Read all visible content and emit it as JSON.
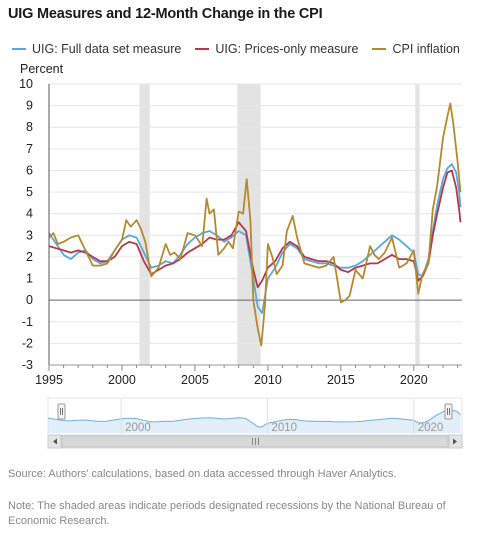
{
  "header": {
    "title": "UIG Measures and 12-Month Change in the CPI",
    "ylabel": "Percent"
  },
  "legend": [
    {
      "label": "UIG: Full data set measure",
      "color": "#5aa7dc"
    },
    {
      "label": "UIG: Prices-only measure",
      "color": "#b5394a"
    },
    {
      "label": "CPI inflation",
      "color": "#b38a2e"
    }
  ],
  "navigator": {
    "year_labels": [
      "2000",
      "2010",
      "2020"
    ],
    "scroll_left_icon": "chevron-left-icon",
    "scroll_right_icon": "chevron-right-icon",
    "thumb_icon": "grip-lines-icon"
  },
  "footer": {
    "source": "Source: Authors' calculations, based on data accessed through Haver Analytics.",
    "note": "Note: The shaded areas indicate periods designated recessions by the National Bureau of Economic Research."
  },
  "chart_data": {
    "type": "line",
    "title": "UIG Measures and 12-Month Change in the CPI",
    "ylabel": "Percent",
    "xlabel": "",
    "xlim": [
      1995,
      2023.3
    ],
    "ylim": [
      -3,
      10
    ],
    "x_ticks": [
      1995,
      2000,
      2005,
      2010,
      2015,
      2020
    ],
    "y_ticks": [
      -3,
      -2,
      -1,
      0,
      1,
      2,
      3,
      4,
      5,
      6,
      7,
      8,
      9,
      10
    ],
    "grid": true,
    "legend_position": "top",
    "recessions": [
      [
        2001.2,
        2001.9
      ],
      [
        2007.9,
        2009.5
      ],
      [
        2020.1,
        2020.4
      ]
    ],
    "series": [
      {
        "name": "UIG: Full data set measure",
        "color": "#5aa7dc",
        "x": [
          1995,
          1995.5,
          1996,
          1996.5,
          1997,
          1997.5,
          1998,
          1998.5,
          1999,
          1999.5,
          2000,
          2000.5,
          2001,
          2001.5,
          2002,
          2002.5,
          2003,
          2003.5,
          2004,
          2004.5,
          2005,
          2005.5,
          2006,
          2006.5,
          2007,
          2007.5,
          2008,
          2008.5,
          2009,
          2009.3,
          2009.6,
          2010,
          2010.5,
          2011,
          2011.5,
          2012,
          2012.5,
          2013,
          2013.5,
          2014,
          2014.5,
          2015,
          2015.5,
          2016,
          2016.5,
          2017,
          2017.5,
          2018,
          2018.5,
          2019,
          2019.5,
          2020,
          2020.3,
          2020.6,
          2021,
          2021.3,
          2021.6,
          2022,
          2022.3,
          2022.6,
          2022.9,
          2023.1,
          2023.2
        ],
        "values": [
          3.1,
          2.6,
          2.1,
          1.9,
          2.2,
          2.3,
          1.9,
          1.7,
          1.8,
          2.3,
          2.8,
          3.0,
          2.9,
          2.2,
          1.5,
          1.6,
          1.8,
          1.7,
          2.1,
          2.6,
          2.9,
          3.1,
          3.2,
          3.0,
          2.7,
          2.9,
          3.2,
          3.0,
          1.0,
          -0.3,
          -0.6,
          1.0,
          1.5,
          2.2,
          2.6,
          2.4,
          1.9,
          1.8,
          1.7,
          1.7,
          1.6,
          1.5,
          1.5,
          1.6,
          1.8,
          2.1,
          2.4,
          2.7,
          3.0,
          2.8,
          2.5,
          2.2,
          1.2,
          1.1,
          1.9,
          3.2,
          4.4,
          5.6,
          6.1,
          6.3,
          5.9,
          5.0,
          4.3
        ]
      },
      {
        "name": "UIG: Prices-only measure",
        "color": "#b5394a",
        "x": [
          1995,
          1995.5,
          1996,
          1996.5,
          1997,
          1997.5,
          1998,
          1998.5,
          1999,
          1999.5,
          2000,
          2000.5,
          2001,
          2001.5,
          2002,
          2002.5,
          2003,
          2003.5,
          2004,
          2004.5,
          2005,
          2005.5,
          2006,
          2006.5,
          2007,
          2007.5,
          2008,
          2008.5,
          2009,
          2009.3,
          2009.6,
          2010,
          2010.5,
          2011,
          2011.5,
          2012,
          2012.5,
          2013,
          2013.5,
          2014,
          2014.5,
          2015,
          2015.5,
          2016,
          2016.5,
          2017,
          2017.5,
          2018,
          2018.5,
          2019,
          2019.5,
          2020,
          2020.3,
          2020.6,
          2021,
          2021.3,
          2021.6,
          2022,
          2022.3,
          2022.6,
          2022.9,
          2023.1,
          2023.2
        ],
        "values": [
          2.5,
          2.4,
          2.3,
          2.2,
          2.3,
          2.2,
          2.0,
          1.8,
          1.8,
          2.0,
          2.5,
          2.7,
          2.6,
          1.8,
          1.2,
          1.4,
          1.6,
          1.7,
          1.9,
          2.2,
          2.4,
          2.6,
          2.9,
          2.8,
          2.8,
          3.0,
          3.6,
          3.2,
          1.4,
          0.6,
          0.9,
          1.5,
          1.8,
          2.4,
          2.7,
          2.5,
          2.0,
          1.9,
          1.8,
          1.8,
          1.7,
          1.4,
          1.3,
          1.5,
          1.6,
          1.7,
          1.7,
          1.9,
          2.1,
          1.9,
          1.9,
          1.8,
          0.9,
          1.1,
          1.7,
          3.0,
          4.0,
          5.2,
          5.9,
          6.0,
          5.2,
          4.2,
          3.6
        ]
      },
      {
        "name": "CPI inflation",
        "color": "#b38a2e",
        "x": [
          1995,
          1995.3,
          1995.6,
          1996,
          1996.5,
          1997,
          1997.5,
          1998,
          1998.5,
          1999,
          1999.5,
          2000,
          2000.3,
          2000.6,
          2001,
          2001.3,
          2001.6,
          2002,
          2002.5,
          2003,
          2003.3,
          2003.6,
          2004,
          2004.5,
          2005,
          2005.5,
          2005.8,
          2006,
          2006.3,
          2006.6,
          2007,
          2007.3,
          2007.6,
          2008,
          2008.3,
          2008.55,
          2008.8,
          2009,
          2009.3,
          2009.55,
          2009.8,
          2010,
          2010.3,
          2010.6,
          2011,
          2011.3,
          2011.7,
          2012,
          2012.5,
          2013,
          2013.5,
          2014,
          2014.5,
          2015,
          2015.3,
          2015.6,
          2016,
          2016.5,
          2017,
          2017.3,
          2017.6,
          2018,
          2018.5,
          2019,
          2019.5,
          2020,
          2020.3,
          2020.6,
          2021,
          2021.3,
          2021.6,
          2022,
          2022.3,
          2022.5,
          2022.7,
          2023,
          2023.2
        ],
        "values": [
          2.9,
          3.1,
          2.6,
          2.7,
          2.9,
          3.0,
          2.3,
          1.6,
          1.6,
          1.7,
          2.3,
          2.8,
          3.7,
          3.4,
          3.7,
          3.3,
          2.7,
          1.1,
          1.5,
          2.6,
          2.1,
          2.2,
          1.9,
          3.1,
          3.0,
          2.5,
          4.7,
          4.0,
          4.2,
          2.1,
          2.4,
          2.7,
          2.4,
          4.1,
          4.0,
          5.6,
          3.7,
          0.0,
          -1.3,
          -2.1,
          -0.2,
          2.6,
          2.0,
          1.2,
          1.6,
          3.2,
          3.9,
          2.9,
          1.7,
          1.6,
          1.5,
          1.6,
          2.0,
          -0.1,
          0.0,
          0.2,
          1.4,
          1.0,
          2.5,
          2.1,
          1.9,
          2.2,
          2.9,
          1.5,
          1.7,
          2.3,
          0.3,
          1.2,
          1.7,
          4.2,
          5.3,
          7.5,
          8.5,
          9.1,
          8.2,
          6.4,
          5.0
        ]
      }
    ]
  }
}
